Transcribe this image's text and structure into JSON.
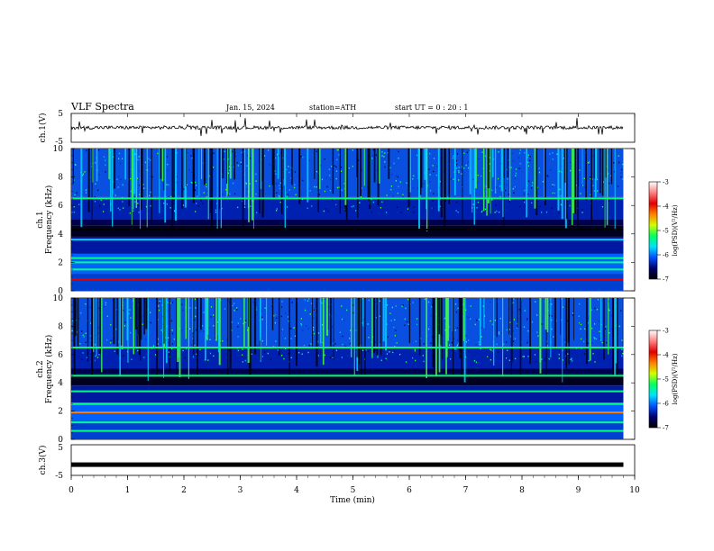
{
  "header": {
    "title": "VLF  Spectra",
    "date": "Jan. 15, 2024",
    "station": "station=ATH",
    "start": "start  UT  =    0 : 20 : 1"
  },
  "chart_data": [
    {
      "type": "line",
      "name": "ch1-waveform",
      "ylabel": "ch.1(V)",
      "ylim": [
        -5,
        5
      ],
      "yticks": [
        "5",
        "-5"
      ],
      "xlim": [
        0,
        10
      ],
      "baseline": 0.1
    },
    {
      "type": "heatmap",
      "name": "ch1-spectrogram",
      "ylabel": "ch.1\nFrequency  (kHz)",
      "ylim": [
        0,
        10
      ],
      "yticks": [
        "0",
        "2",
        "4",
        "6",
        "8",
        "10"
      ],
      "xlim": [
        0,
        9.8
      ],
      "colorbar": {
        "label": "log(PSD)(V²/Hz)",
        "range": [
          -7,
          -3
        ],
        "ticks": [
          "-3",
          "-4",
          "-5",
          "-6",
          "-7"
        ]
      },
      "bands_khz": [
        {
          "f": 0.8,
          "level": -3.3
        },
        {
          "f": 1.5,
          "level": -4.8
        },
        {
          "f": 2.0,
          "level": -4.9
        },
        {
          "f": 2.3,
          "level": -4.6
        },
        {
          "f": 3.6,
          "level": -5.2
        },
        {
          "f": 4.3,
          "level": -6.8
        },
        {
          "f": 6.5,
          "level": -4.9
        }
      ]
    },
    {
      "type": "heatmap",
      "name": "ch2-spectrogram",
      "ylabel": "ch.2\nFrequency  (kHz)",
      "ylim": [
        0,
        10
      ],
      "yticks": [
        "0",
        "2",
        "4",
        "6",
        "8",
        "10"
      ],
      "xlim": [
        0,
        9.8
      ],
      "colorbar": {
        "label": "log(PSD)(V²/Hz)",
        "range": [
          -7,
          -3
        ],
        "ticks": [
          "-3",
          "-4",
          "-5",
          "-6",
          "-7"
        ]
      },
      "bands_khz": [
        {
          "f": 0.6,
          "level": -4.8
        },
        {
          "f": 1.2,
          "level": -5.0
        },
        {
          "f": 1.9,
          "level": -3.6
        },
        {
          "f": 2.5,
          "level": -4.9
        },
        {
          "f": 3.4,
          "level": -4.8
        },
        {
          "f": 4.5,
          "level": -5.0
        },
        {
          "f": 6.5,
          "level": -4.9
        }
      ]
    },
    {
      "type": "line",
      "name": "ch3-waveform",
      "ylabel": "ch.3(V)",
      "ylim": [
        -5,
        5
      ],
      "yticks": [
        "5",
        "-5"
      ],
      "xlim": [
        0,
        9.8
      ],
      "value": -1.5
    }
  ],
  "xaxis": {
    "label": "Time  (min)",
    "ticks": [
      "0",
      "1",
      "2",
      "3",
      "4",
      "5",
      "6",
      "7",
      "8",
      "9",
      "10"
    ],
    "range": [
      0,
      10
    ],
    "data_end": 9.8
  },
  "colors": {
    "psd_scale": [
      "#000000",
      "#0000a0",
      "#0050ff",
      "#00d0ff",
      "#00ff80",
      "#c0ff00",
      "#ff8000",
      "#e00000",
      "#ffffff"
    ]
  }
}
